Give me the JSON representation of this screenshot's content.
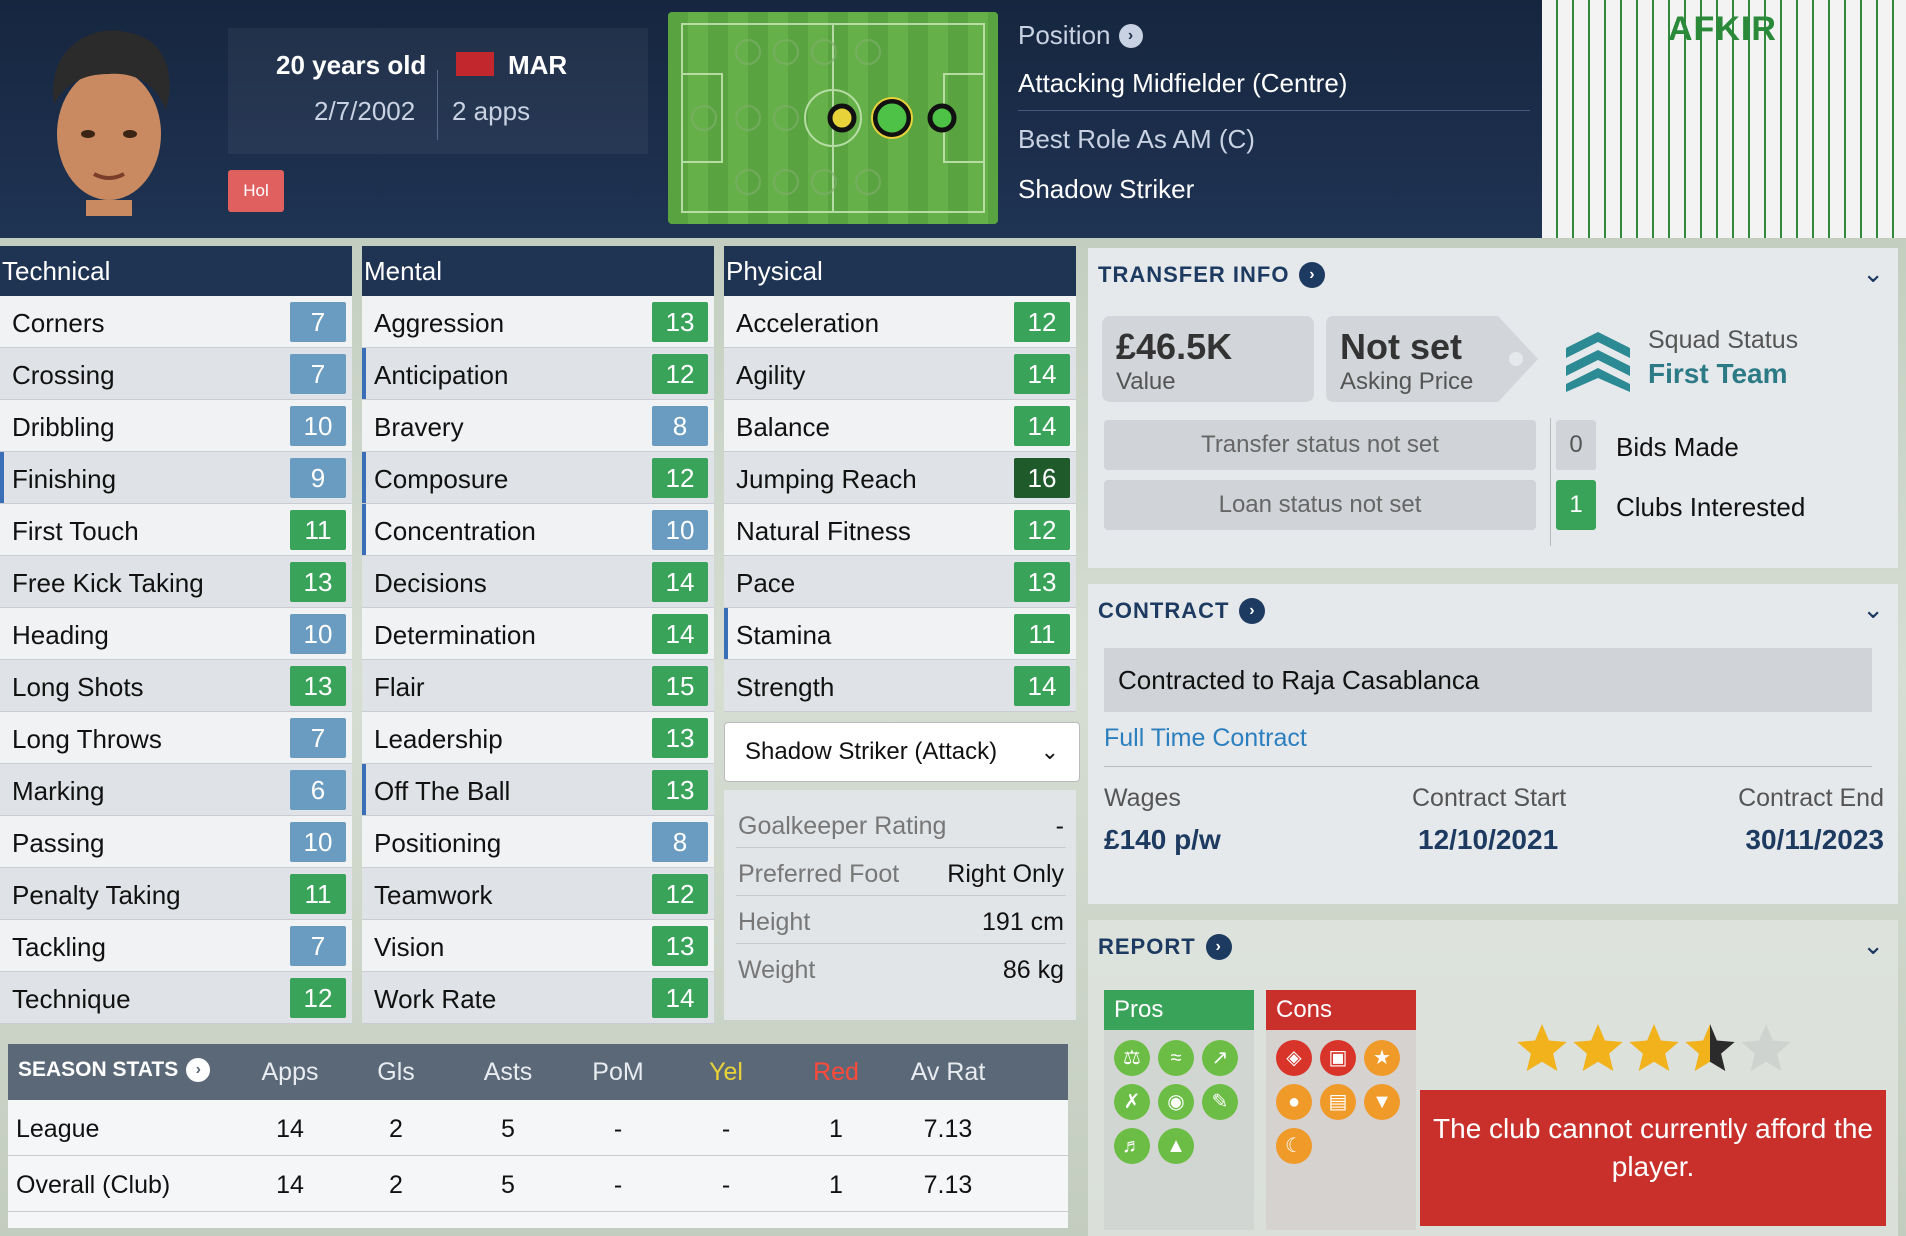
{
  "header": {
    "age": "20 years old",
    "dob": "2/7/2002",
    "nation": "MAR",
    "apps": "2 apps",
    "badge": "Hol",
    "position_label": "Position",
    "position_value": "Attacking Midfielder (Centre)",
    "best_role_label": "Best Role As AM (C)",
    "best_role_value": "Shadow Striker",
    "kit_name": "AFKIR",
    "flag_color": "#c1272d"
  },
  "technical": {
    "title": "Technical",
    "rows": [
      {
        "name": "Corners",
        "value": "7"
      },
      {
        "name": "Crossing",
        "value": "7"
      },
      {
        "name": "Dribbling",
        "value": "10"
      },
      {
        "name": "Finishing",
        "value": "9"
      },
      {
        "name": "First Touch",
        "value": "11"
      },
      {
        "name": "Free Kick Taking",
        "value": "13"
      },
      {
        "name": "Heading",
        "value": "10"
      },
      {
        "name": "Long Shots",
        "value": "13"
      },
      {
        "name": "Long Throws",
        "value": "7"
      },
      {
        "name": "Marking",
        "value": "6"
      },
      {
        "name": "Passing",
        "value": "10"
      },
      {
        "name": "Penalty Taking",
        "value": "11"
      },
      {
        "name": "Tackling",
        "value": "7"
      },
      {
        "name": "Technique",
        "value": "12"
      }
    ]
  },
  "mental": {
    "title": "Mental",
    "rows": [
      {
        "name": "Aggression",
        "value": "13"
      },
      {
        "name": "Anticipation",
        "value": "12"
      },
      {
        "name": "Bravery",
        "value": "8"
      },
      {
        "name": "Composure",
        "value": "12"
      },
      {
        "name": "Concentration",
        "value": "10"
      },
      {
        "name": "Decisions",
        "value": "14"
      },
      {
        "name": "Determination",
        "value": "14"
      },
      {
        "name": "Flair",
        "value": "15"
      },
      {
        "name": "Leadership",
        "value": "13"
      },
      {
        "name": "Off The Ball",
        "value": "13"
      },
      {
        "name": "Positioning",
        "value": "8"
      },
      {
        "name": "Teamwork",
        "value": "12"
      },
      {
        "name": "Vision",
        "value": "13"
      },
      {
        "name": "Work Rate",
        "value": "14"
      }
    ]
  },
  "physical": {
    "title": "Physical",
    "rows": [
      {
        "name": "Acceleration",
        "value": "12"
      },
      {
        "name": "Agility",
        "value": "14"
      },
      {
        "name": "Balance",
        "value": "14"
      },
      {
        "name": "Jumping Reach",
        "value": "16"
      },
      {
        "name": "Natural Fitness",
        "value": "12"
      },
      {
        "name": "Pace",
        "value": "13"
      },
      {
        "name": "Stamina",
        "value": "11"
      },
      {
        "name": "Strength",
        "value": "14"
      }
    ],
    "role_select": "Shadow Striker (Attack)",
    "info": [
      {
        "k": "Goalkeeper Rating",
        "v": "-"
      },
      {
        "k": "Preferred Foot",
        "v": "Right Only"
      },
      {
        "k": "Height",
        "v": "191 cm"
      },
      {
        "k": "Weight",
        "v": "86 kg"
      }
    ]
  },
  "season": {
    "title": "SEASON STATS",
    "cols": [
      "Apps",
      "Gls",
      "Asts",
      "PoM",
      "Yel",
      "Red",
      "Av Rat"
    ],
    "rows": [
      {
        "name": "League",
        "vals": [
          "14",
          "2",
          "5",
          "-",
          "-",
          "1",
          "7.13"
        ]
      },
      {
        "name": "Overall (Club)",
        "vals": [
          "14",
          "2",
          "5",
          "-",
          "-",
          "1",
          "7.13"
        ]
      }
    ],
    "yel_color": "#e8d23a",
    "red_color": "#ff4a3a"
  },
  "transfer": {
    "title": "TRANSFER INFO",
    "value": "£46.5K",
    "value_label": "Value",
    "asking": "Not set",
    "asking_label": "Asking Price",
    "squad_label": "Squad Status",
    "squad_value": "First Team",
    "transfer_status": "Transfer status not set",
    "loan_status": "Loan status not set",
    "bids": "0",
    "bids_label": "Bids Made",
    "clubs": "1",
    "clubs_label": "Clubs Interested"
  },
  "contract": {
    "title": "CONTRACT",
    "club": "Contracted to Raja Casablanca",
    "type": "Full Time Contract",
    "wages_label": "Wages",
    "wages": "£140 p/w",
    "start_label": "Contract Start",
    "start": "12/10/2021",
    "end_label": "Contract End",
    "end": "30/11/2023"
  },
  "report": {
    "title": "REPORT",
    "pros_label": "Pros",
    "cons_label": "Cons",
    "stars": 3.5,
    "stars_max": 5,
    "afford": "The club cannot currently afford the player."
  }
}
